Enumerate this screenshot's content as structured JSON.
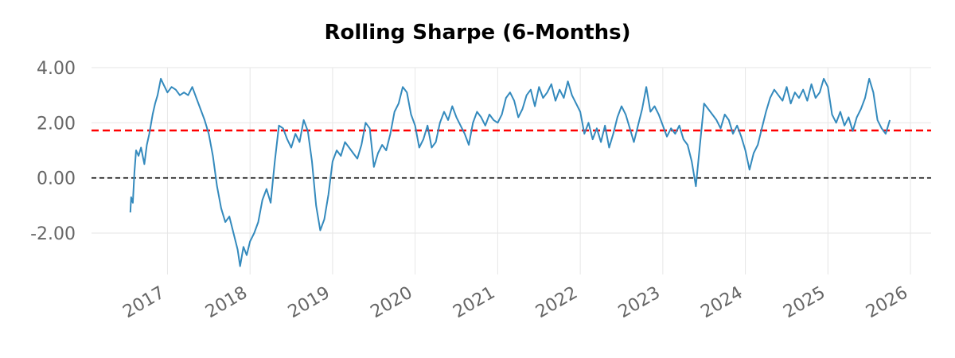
{
  "chart_data": {
    "type": "line",
    "title": "Rolling Sharpe (6-Months)",
    "xlabel": "",
    "ylabel": "",
    "ylim": [
      -3.5,
      4.0
    ],
    "grid": true,
    "legend": "none",
    "y_ticks": [
      {
        "value": 4,
        "label": "4.00"
      },
      {
        "value": 2,
        "label": "2.00"
      },
      {
        "value": 0,
        "label": "0.00"
      },
      {
        "value": -2,
        "label": "-2.00"
      }
    ],
    "x_ticks": [
      {
        "value": 2017,
        "label": "2017"
      },
      {
        "value": 2018,
        "label": "2018"
      },
      {
        "value": 2019,
        "label": "2019"
      },
      {
        "value": 2020,
        "label": "2020"
      },
      {
        "value": 2021,
        "label": "2021"
      },
      {
        "value": 2022,
        "label": "2022"
      },
      {
        "value": 2023,
        "label": "2023"
      },
      {
        "value": 2024,
        "label": "2024"
      },
      {
        "value": 2025,
        "label": "2025"
      },
      {
        "value": 2026,
        "label": "2026"
      }
    ],
    "xlim": [
      2016.08,
      2026.25
    ],
    "reference_lines": [
      {
        "value": 1.72,
        "color": "#ff0000",
        "style": "dashed"
      },
      {
        "value": 0.0,
        "color": "#000000",
        "style": "dashed"
      }
    ],
    "series": [
      {
        "color": "#348abd",
        "x": [
          2016.55,
          2016.56,
          2016.58,
          2016.6,
          2016.62,
          2016.65,
          2016.68,
          2016.72,
          2016.75,
          2016.78,
          2016.82,
          2016.85,
          2016.88,
          2016.92,
          2016.95,
          2017.0,
          2017.05,
          2017.1,
          2017.15,
          2017.2,
          2017.25,
          2017.3,
          2017.35,
          2017.4,
          2017.45,
          2017.5,
          2017.55,
          2017.6,
          2017.65,
          2017.7,
          2017.75,
          2017.8,
          2017.85,
          2017.88,
          2017.92,
          2017.96,
          2018.0,
          2018.05,
          2018.1,
          2018.15,
          2018.2,
          2018.25,
          2018.3,
          2018.35,
          2018.4,
          2018.45,
          2018.5,
          2018.55,
          2018.6,
          2018.65,
          2018.7,
          2018.75,
          2018.8,
          2018.85,
          2018.9,
          2018.95,
          2019.0,
          2019.05,
          2019.1,
          2019.15,
          2019.2,
          2019.25,
          2019.3,
          2019.35,
          2019.4,
          2019.45,
          2019.5,
          2019.55,
          2019.6,
          2019.65,
          2019.7,
          2019.75,
          2019.8,
          2019.85,
          2019.9,
          2019.95,
          2020.0,
          2020.05,
          2020.1,
          2020.15,
          2020.2,
          2020.25,
          2020.3,
          2020.35,
          2020.4,
          2020.45,
          2020.5,
          2020.55,
          2020.6,
          2020.65,
          2020.7,
          2020.75,
          2020.8,
          2020.85,
          2020.9,
          2020.95,
          2021.0,
          2021.05,
          2021.1,
          2021.15,
          2021.2,
          2021.25,
          2021.3,
          2021.35,
          2021.4,
          2021.45,
          2021.5,
          2021.55,
          2021.6,
          2021.65,
          2021.7,
          2021.75,
          2021.8,
          2021.85,
          2021.9,
          2021.95,
          2022.0,
          2022.05,
          2022.1,
          2022.15,
          2022.2,
          2022.25,
          2022.3,
          2022.35,
          2022.4,
          2022.45,
          2022.5,
          2022.55,
          2022.6,
          2022.65,
          2022.7,
          2022.75,
          2022.8,
          2022.85,
          2022.9,
          2022.95,
          2023.0,
          2023.05,
          2023.1,
          2023.15,
          2023.2,
          2023.25,
          2023.3,
          2023.35,
          2023.4,
          2023.45,
          2023.5,
          2023.55,
          2023.6,
          2023.65,
          2023.7,
          2023.75,
          2023.8,
          2023.85,
          2023.9,
          2023.95,
          2024.0,
          2024.05,
          2024.1,
          2024.15,
          2024.2,
          2024.25,
          2024.3,
          2024.35,
          2024.4,
          2024.45,
          2024.5,
          2024.55,
          2024.6,
          2024.65,
          2024.7,
          2024.75,
          2024.8,
          2024.85,
          2024.9,
          2024.95,
          2025.0,
          2025.05,
          2025.1,
          2025.15,
          2025.2,
          2025.25,
          2025.3,
          2025.35,
          2025.4,
          2025.45,
          2025.5,
          2025.55,
          2025.6,
          2025.65,
          2025.7,
          2025.75
        ],
        "values": [
          -1.25,
          -0.7,
          -0.9,
          0.2,
          1.0,
          0.8,
          1.1,
          0.5,
          1.2,
          1.6,
          2.3,
          2.7,
          3.0,
          3.6,
          3.4,
          3.1,
          3.3,
          3.2,
          3.0,
          3.1,
          3.0,
          3.3,
          2.9,
          2.5,
          2.1,
          1.6,
          0.8,
          -0.3,
          -1.1,
          -1.6,
          -1.4,
          -2.0,
          -2.6,
          -3.2,
          -2.5,
          -2.8,
          -2.3,
          -2.0,
          -1.6,
          -0.8,
          -0.4,
          -0.9,
          0.6,
          1.9,
          1.8,
          1.4,
          1.1,
          1.6,
          1.3,
          2.1,
          1.7,
          0.6,
          -1.0,
          -1.9,
          -1.5,
          -0.6,
          0.6,
          1.0,
          0.8,
          1.3,
          1.1,
          0.9,
          0.7,
          1.2,
          2.0,
          1.8,
          0.4,
          0.9,
          1.2,
          1.0,
          1.6,
          2.4,
          2.7,
          3.3,
          3.1,
          2.3,
          1.9,
          1.1,
          1.4,
          1.9,
          1.1,
          1.3,
          2.0,
          2.4,
          2.1,
          2.6,
          2.2,
          1.9,
          1.6,
          1.2,
          2.0,
          2.4,
          2.2,
          1.9,
          2.3,
          2.1,
          2.0,
          2.3,
          2.9,
          3.1,
          2.8,
          2.2,
          2.5,
          3.0,
          3.2,
          2.6,
          3.3,
          2.9,
          3.1,
          3.4,
          2.8,
          3.2,
          2.9,
          3.5,
          3.0,
          2.7,
          2.4,
          1.6,
          2.0,
          1.4,
          1.8,
          1.3,
          1.9,
          1.1,
          1.6,
          2.2,
          2.6,
          2.3,
          1.8,
          1.3,
          1.9,
          2.5,
          3.3,
          2.4,
          2.6,
          2.3,
          1.9,
          1.5,
          1.8,
          1.6,
          1.9,
          1.4,
          1.2,
          0.6,
          -0.3,
          1.2,
          2.7,
          2.5,
          2.3,
          2.1,
          1.8,
          2.3,
          2.1,
          1.6,
          1.9,
          1.5,
          1.0,
          0.3,
          0.9,
          1.2,
          1.8,
          2.4,
          2.9,
          3.2,
          3.0,
          2.8,
          3.3,
          2.7,
          3.1,
          2.9,
          3.2,
          2.8,
          3.4,
          2.9,
          3.1,
          3.6,
          3.3,
          2.3,
          2.0,
          2.4,
          1.9,
          2.2,
          1.7,
          2.2,
          2.5,
          2.9,
          3.6,
          3.1,
          2.1,
          1.8,
          1.6,
          2.1
        ]
      }
    ]
  }
}
